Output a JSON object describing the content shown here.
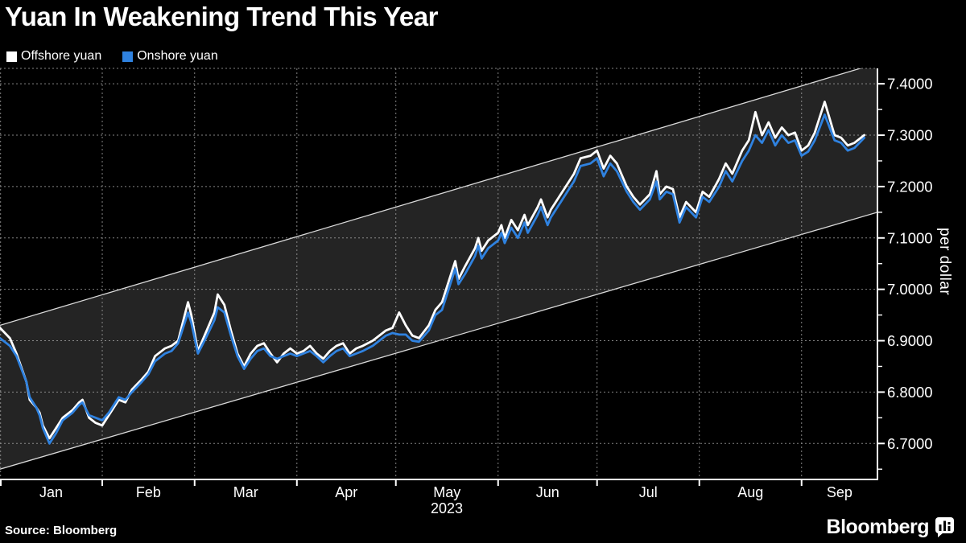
{
  "header": {
    "title": "Yuan In Weakening Trend This Year"
  },
  "legend": {
    "items": [
      {
        "label": "Offshore yuan",
        "color": "#ffffff"
      },
      {
        "label": "Onshore yuan",
        "color": "#2f82e0"
      }
    ]
  },
  "axes": {
    "y": {
      "label": "per dollar",
      "tick_labels": [
        "7.4000",
        "7.3000",
        "7.2000",
        "7.1000",
        "7.0000",
        "6.9000",
        "6.8000",
        "6.7000"
      ],
      "tick_values": [
        7.4,
        7.3,
        7.2,
        7.1,
        7.0,
        6.9,
        6.8,
        6.7
      ],
      "minor_tick_values": [
        7.35,
        7.25,
        7.15,
        7.05,
        6.95,
        6.85,
        6.75,
        6.65
      ],
      "range": [
        6.63,
        7.43
      ]
    },
    "x": {
      "months": [
        "Jan",
        "Feb",
        "Mar",
        "Apr",
        "May",
        "Jun",
        "Jul",
        "Aug",
        "Sep"
      ],
      "month_start_days": [
        0,
        31,
        59,
        90,
        120,
        151,
        181,
        212,
        243
      ],
      "end_day": 266,
      "year": "2023"
    }
  },
  "footer": {
    "source": "Source: Bloomberg",
    "brand": "Bloomberg"
  },
  "colors": {
    "background": "#000000",
    "channel_fill": "#242424",
    "channel_line": "#d9d9d9",
    "grid": "#9b9b9b",
    "axis": "#ffffff",
    "text": "#ffffff"
  },
  "chart_data": {
    "type": "line",
    "title": "Yuan In Weakening Trend This Year",
    "ylabel": "per dollar",
    "ylim": [
      6.63,
      7.43
    ],
    "x_unit": "day_of_year_2023",
    "xlim_days": [
      0,
      266
    ],
    "grid": true,
    "legend_position": "top-left",
    "x": [
      0,
      3,
      5,
      8,
      9,
      11,
      12,
      13,
      15,
      17,
      19,
      22,
      24,
      25,
      27,
      29,
      31,
      33,
      36,
      38,
      40,
      43,
      45,
      47,
      50,
      52,
      54,
      57,
      58,
      60,
      62,
      65,
      66,
      68,
      70,
      72,
      74,
      76,
      78,
      80,
      82,
      84,
      86,
      88,
      90,
      92,
      94,
      96,
      98,
      100,
      102,
      104,
      106,
      108,
      110,
      113,
      115,
      117,
      119,
      121,
      123,
      125,
      127,
      130,
      132,
      134,
      137,
      138,
      139,
      141,
      144,
      145,
      146,
      148,
      151,
      152,
      153,
      155,
      157,
      159,
      160,
      163,
      164,
      166,
      167,
      170,
      172,
      174,
      176,
      179,
      181,
      183,
      185,
      187,
      190,
      192,
      194,
      197,
      199,
      200,
      202,
      204,
      206,
      208,
      211,
      213,
      215,
      218,
      220,
      222,
      225,
      227,
      229,
      231,
      233,
      235,
      237,
      239,
      241,
      243,
      245,
      247,
      250,
      253,
      255,
      257,
      259,
      262
    ],
    "series": [
      {
        "name": "Offshore yuan",
        "color": "#ffffff",
        "values": [
          6.925,
          6.905,
          6.875,
          6.82,
          6.785,
          6.77,
          6.76,
          6.735,
          6.71,
          6.73,
          6.75,
          6.765,
          6.78,
          6.785,
          6.75,
          6.74,
          6.735,
          6.755,
          6.785,
          6.78,
          6.805,
          6.825,
          6.84,
          6.87,
          6.885,
          6.89,
          6.9,
          6.975,
          6.95,
          6.88,
          6.91,
          6.955,
          6.99,
          6.97,
          6.92,
          6.875,
          6.85,
          6.875,
          6.89,
          6.895,
          6.875,
          6.858,
          6.875,
          6.885,
          6.875,
          6.88,
          6.89,
          6.875,
          6.865,
          6.88,
          6.89,
          6.895,
          6.875,
          6.885,
          6.89,
          6.9,
          6.91,
          6.92,
          6.925,
          6.955,
          6.93,
          6.91,
          6.905,
          6.93,
          6.96,
          6.975,
          7.035,
          7.055,
          7.02,
          7.045,
          7.08,
          7.1,
          7.075,
          7.095,
          7.11,
          7.125,
          7.1,
          7.135,
          7.115,
          7.145,
          7.125,
          7.16,
          7.175,
          7.14,
          7.155,
          7.185,
          7.205,
          7.225,
          7.255,
          7.26,
          7.27,
          7.235,
          7.26,
          7.245,
          7.2,
          7.18,
          7.165,
          7.185,
          7.23,
          7.185,
          7.2,
          7.195,
          7.14,
          7.17,
          7.15,
          7.19,
          7.18,
          7.215,
          7.245,
          7.225,
          7.27,
          7.29,
          7.345,
          7.3,
          7.325,
          7.295,
          7.315,
          7.3,
          7.305,
          7.27,
          7.28,
          7.305,
          7.365,
          7.3,
          7.295,
          7.28,
          7.285,
          7.3
        ]
      },
      {
        "name": "Onshore yuan",
        "color": "#2f82e0",
        "values": [
          6.905,
          6.89,
          6.87,
          6.82,
          6.79,
          6.77,
          6.755,
          6.73,
          6.7,
          6.72,
          6.745,
          6.76,
          6.775,
          6.78,
          6.755,
          6.75,
          6.745,
          6.76,
          6.79,
          6.785,
          6.8,
          6.82,
          6.835,
          6.86,
          6.875,
          6.88,
          6.895,
          6.955,
          6.935,
          6.875,
          6.9,
          6.94,
          6.965,
          6.955,
          6.91,
          6.87,
          6.845,
          6.865,
          6.88,
          6.885,
          6.87,
          6.865,
          6.87,
          6.875,
          6.87,
          6.875,
          6.88,
          6.87,
          6.858,
          6.87,
          6.88,
          6.885,
          6.87,
          6.875,
          6.88,
          6.89,
          6.9,
          6.91,
          6.915,
          6.912,
          6.912,
          6.9,
          6.898,
          6.92,
          6.95,
          6.96,
          7.02,
          7.04,
          7.01,
          7.03,
          7.065,
          7.085,
          7.06,
          7.08,
          7.095,
          7.11,
          7.09,
          7.12,
          7.1,
          7.13,
          7.11,
          7.145,
          7.16,
          7.125,
          7.14,
          7.17,
          7.19,
          7.21,
          7.24,
          7.245,
          7.255,
          7.22,
          7.245,
          7.23,
          7.19,
          7.17,
          7.155,
          7.175,
          7.21,
          7.175,
          7.19,
          7.185,
          7.13,
          7.16,
          7.14,
          7.18,
          7.17,
          7.2,
          7.23,
          7.21,
          7.25,
          7.27,
          7.3,
          7.285,
          7.31,
          7.28,
          7.3,
          7.285,
          7.29,
          7.26,
          7.268,
          7.29,
          7.34,
          7.29,
          7.285,
          7.27,
          7.275,
          7.295
        ]
      }
    ],
    "trend_channel": {
      "top_start": 6.93,
      "top_end": 7.44,
      "bottom_start": 6.65,
      "bottom_end": 7.15,
      "x_start": 0,
      "x_end": 266,
      "fill": "#242424",
      "line_color": "#d9d9d9"
    }
  }
}
